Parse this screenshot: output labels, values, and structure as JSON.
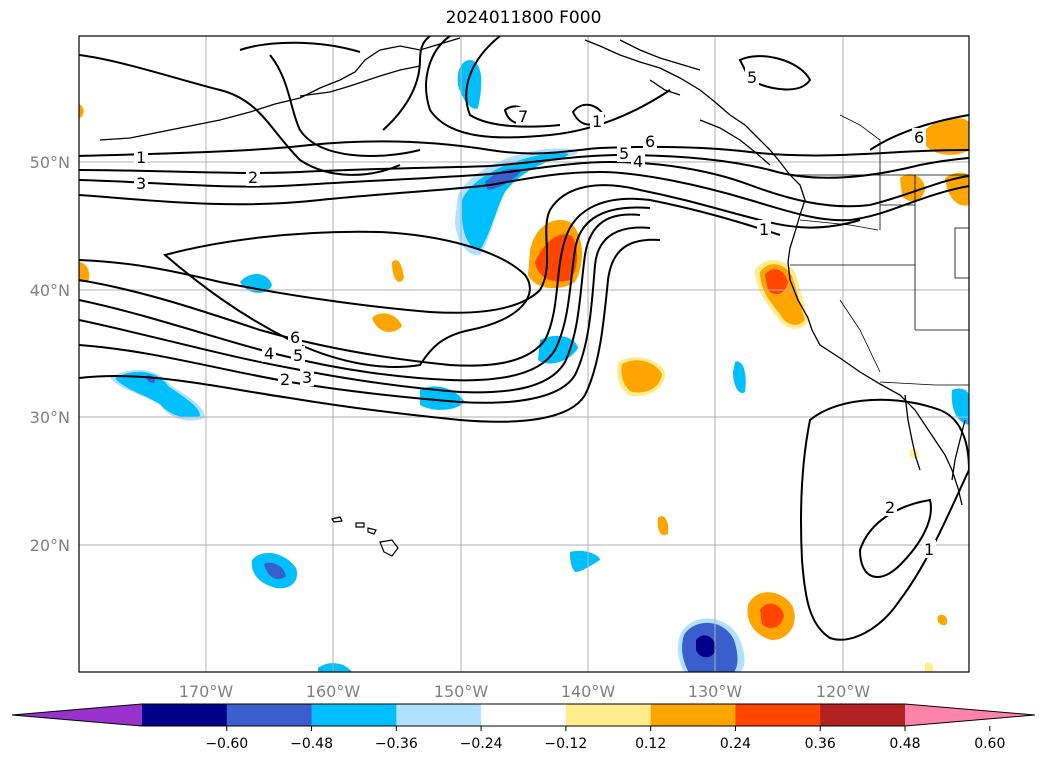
{
  "title": "2024011800 F000",
  "map": {
    "lon_labels": [
      "170°W",
      "160°W",
      "150°W",
      "140°W",
      "130°W",
      "120°W"
    ],
    "lat_labels": [
      "50°N",
      "40°N",
      "30°N",
      "20°N"
    ]
  },
  "contour_labels": [
    "1",
    "2",
    "3",
    "4",
    "5",
    "6",
    "7"
  ],
  "colorbar": {
    "ticks": [
      "−0.60",
      "−0.48",
      "−0.36",
      "−0.24",
      "−0.12",
      "0.12",
      "0.24",
      "0.36",
      "0.48",
      "0.60"
    ],
    "colors": [
      "#9932cc",
      "#00008b",
      "#3a5fcd",
      "#00bfff",
      "#b0e2ff",
      "#ffffff",
      "#ffec8b",
      "#ffa500",
      "#ff4500",
      "#b22222",
      "#ff82ab"
    ]
  }
}
